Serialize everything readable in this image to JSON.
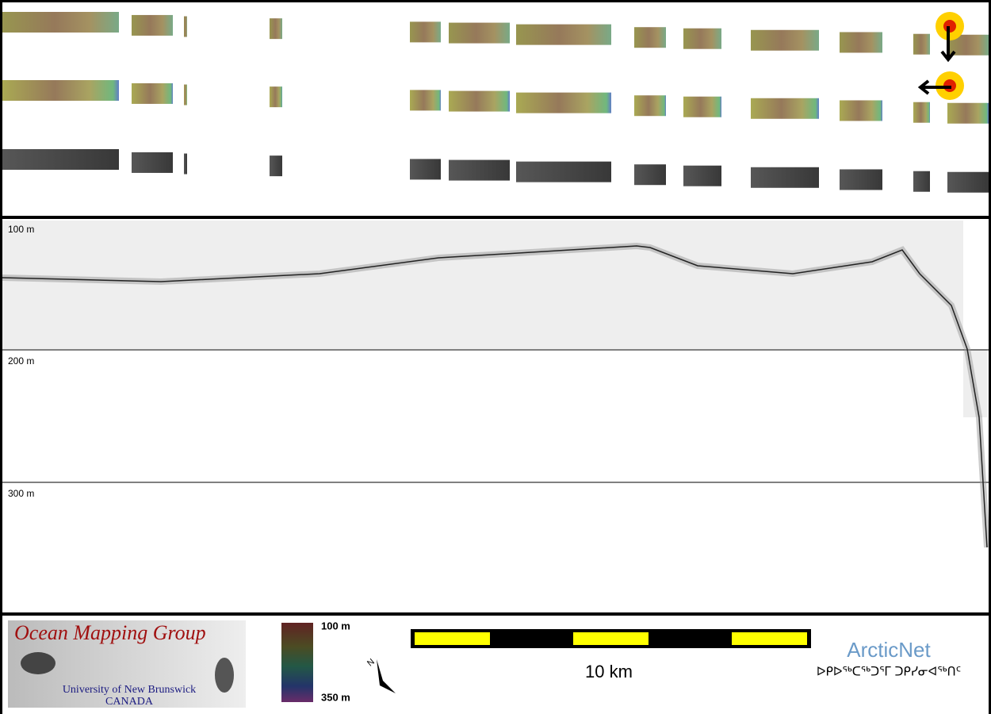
{
  "profile": {
    "depth_labels": [
      "100 m",
      "200 m",
      "300 m"
    ]
  },
  "footer": {
    "logo_title": "Ocean Mapping Group",
    "logo_line1": "University of New Brunswick",
    "logo_line2": "CANADA",
    "colorbar_top": "100 m",
    "colorbar_bottom": "350 m",
    "north_label": "N",
    "scale_label": "10 km",
    "partner_name": "ArcticNet",
    "partner_syllabics": "ᐅᑭᐅᖅᑕᖅᑐᕐᒥ ᑐᑭᓯᓂᐊᖅᑎᑦ"
  }
}
